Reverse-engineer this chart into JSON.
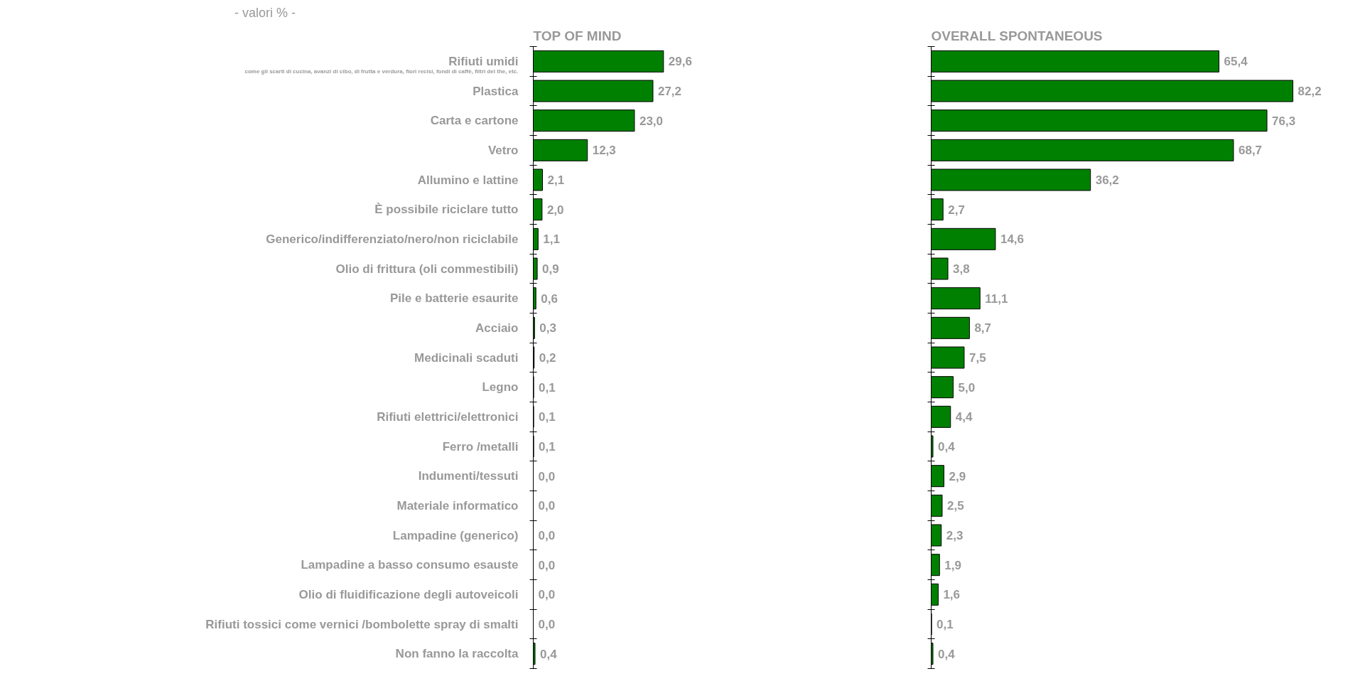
{
  "chart_data": [
    {
      "type": "bar",
      "orientation": "horizontal",
      "title": "TOP OF MIND",
      "subtitle": "- valori % -",
      "categories": [
        "Rifiuti umidi",
        "Plastica",
        "Carta e cartone",
        "Vetro",
        "Allumino e lattine",
        "È possibile riciclare tutto",
        "Generico/indifferenziato/nero/non riciclabile",
        "Olio di frittura (oli commestibili)",
        "Pile e batterie esaurite",
        "Acciaio",
        "Medicinali scaduti",
        "Legno",
        "Rifiuti elettrici/elettronici",
        "Ferro /metalli",
        "Indumenti/tessuti",
        "Materiale informatico",
        "Lampadine (generico)",
        "Lampadine a basso consumo esauste",
        "Olio di fluidificazione degli autoveicoli",
        "Rifiuti tossici come vernici /bombolette spray di smalti",
        "Non fanno la raccolta"
      ],
      "annotations": [
        "come gli scarti di cucina, avanzi di cibo, di frutta e verdura, fiori recisi, fondi di caffè, filtri del the, etc."
      ],
      "values": [
        29.6,
        27.2,
        23.0,
        12.3,
        2.1,
        2.0,
        1.1,
        0.9,
        0.6,
        0.3,
        0.2,
        0.1,
        0.1,
        0.1,
        0.0,
        0.0,
        0.0,
        0.0,
        0.0,
        0.0,
        0.4
      ],
      "value_labels": [
        "29,6",
        "27,2",
        "23,0",
        "12,3",
        "2,1",
        "2,0",
        "1,1",
        "0,9",
        "0,6",
        "0,3",
        "0,2",
        "0,1",
        "0,1",
        "0,1",
        "0,0",
        "0,0",
        "0,0",
        "0,0",
        "0,0",
        "0,0",
        "0,4"
      ],
      "color": "#008000",
      "tick_labels": "y",
      "grid": false
    },
    {
      "type": "bar",
      "orientation": "horizontal",
      "title": "OVERALL SPONTANEOUS",
      "categories": [
        null,
        null,
        null,
        null,
        null,
        null,
        null,
        null,
        null,
        null,
        null,
        null,
        null,
        null,
        null,
        null,
        null,
        null,
        null,
        null,
        null
      ],
      "values": [
        65.4,
        82.2,
        76.3,
        68.7,
        36.2,
        2.7,
        14.6,
        3.8,
        11.1,
        8.7,
        7.5,
        5.0,
        4.4,
        0.4,
        2.9,
        2.5,
        2.3,
        1.9,
        1.6,
        0.1,
        0.4
      ],
      "value_labels": [
        "65,4",
        "82,2",
        "76,3",
        "68,7",
        "36,2",
        "2,7",
        "14,6",
        "3,8",
        "11,1",
        "8,7",
        "7,5",
        "5,0",
        "4,4",
        "0,4",
        "2,9",
        "2,5",
        "2,3",
        "1,9",
        "1,6",
        "0,1",
        "0,4"
      ],
      "color": "#008000",
      "tick_labels": false,
      "grid": false
    }
  ]
}
